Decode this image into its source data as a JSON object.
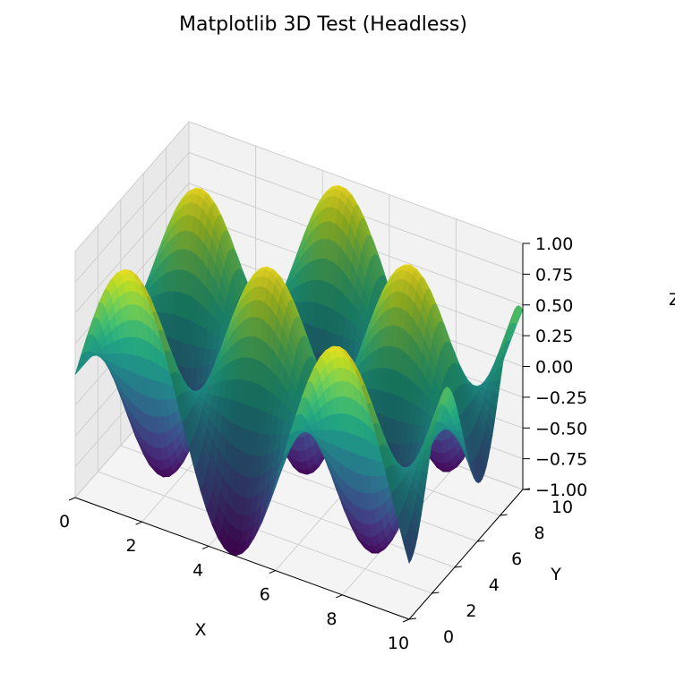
{
  "chart_data": {
    "type": "surface3d",
    "title": "Matplotlib 3D Test (Headless)",
    "xlabel": "X",
    "ylabel": "Y",
    "zlabel": "Z",
    "function": "z = sin(x) * cos(y)",
    "colormap": "viridis",
    "grid": true,
    "xlim": [
      0,
      10
    ],
    "ylim": [
      0,
      10
    ],
    "zlim": [
      -1,
      1
    ],
    "x_ticks": [
      "0",
      "2",
      "4",
      "6",
      "8",
      "10"
    ],
    "y_ticks": [
      "0",
      "2",
      "4",
      "6",
      "8",
      "10"
    ],
    "z_ticks": [
      "−1.00",
      "−0.75",
      "−0.50",
      "−0.25",
      "0.00",
      "0.25",
      "0.50",
      "0.75",
      "1.00"
    ],
    "x_tick_values": [
      0,
      2,
      4,
      6,
      8,
      10
    ],
    "y_tick_values": [
      0,
      2,
      4,
      6,
      8,
      10
    ],
    "z_tick_values": [
      -1,
      -0.75,
      -0.5,
      -0.25,
      0,
      0.25,
      0.5,
      0.75,
      1
    ]
  }
}
